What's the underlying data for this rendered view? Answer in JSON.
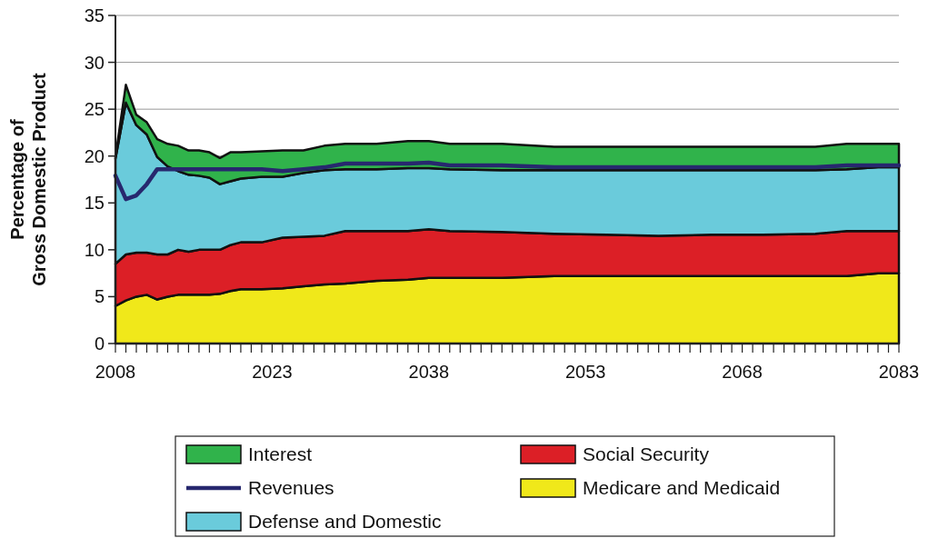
{
  "chart_data": {
    "type": "area",
    "stacked": true,
    "ylabel": "Percentage of\nGross Domestic Product",
    "x": [
      2008,
      2009,
      2010,
      2011,
      2012,
      2013,
      2014,
      2015,
      2016,
      2017,
      2018,
      2019,
      2020,
      2022,
      2024,
      2026,
      2028,
      2030,
      2033,
      2036,
      2038,
      2040,
      2045,
      2050,
      2055,
      2060,
      2065,
      2070,
      2075,
      2078,
      2081,
      2083
    ],
    "series": [
      {
        "name": "Medicare and Medicaid",
        "color": "#f0e81a",
        "values": [
          4.0,
          4.6,
          5.0,
          5.2,
          4.7,
          5.0,
          5.2,
          5.2,
          5.2,
          5.2,
          5.3,
          5.6,
          5.8,
          5.8,
          5.9,
          6.1,
          6.3,
          6.4,
          6.7,
          6.8,
          7.0,
          7.0,
          7.0,
          7.2,
          7.2,
          7.2,
          7.2,
          7.2,
          7.2,
          7.2,
          7.5,
          7.5
        ]
      },
      {
        "name": "Social Security",
        "color": "#dc1f26",
        "values": [
          4.5,
          4.9,
          4.7,
          4.5,
          4.8,
          4.5,
          4.8,
          4.6,
          4.8,
          4.8,
          4.7,
          4.9,
          5.0,
          5.0,
          5.4,
          5.3,
          5.2,
          5.6,
          5.3,
          5.2,
          5.2,
          5.0,
          4.9,
          4.5,
          4.4,
          4.3,
          4.4,
          4.4,
          4.5,
          4.8,
          4.5,
          4.5
        ]
      },
      {
        "name": "Defense and Domestic",
        "color": "#6acbdb",
        "values": [
          11.2,
          16.2,
          13.6,
          12.6,
          10.4,
          9.4,
          8.4,
          8.2,
          7.9,
          7.7,
          7.0,
          6.8,
          6.8,
          7.0,
          6.5,
          6.8,
          7.0,
          6.6,
          6.6,
          6.7,
          6.5,
          6.6,
          6.6,
          6.8,
          6.9,
          7.0,
          6.9,
          6.9,
          6.8,
          6.6,
          6.8,
          6.8
        ]
      },
      {
        "name": "Interest",
        "color": "#30b34b",
        "values": [
          0.2,
          1.9,
          1.1,
          1.3,
          1.9,
          2.4,
          2.7,
          2.6,
          2.7,
          2.7,
          2.8,
          3.1,
          2.8,
          2.7,
          2.8,
          2.4,
          2.6,
          2.7,
          2.7,
          2.9,
          2.9,
          2.7,
          2.8,
          2.5,
          2.5,
          2.5,
          2.5,
          2.5,
          2.5,
          2.7,
          2.5,
          2.5
        ]
      },
      {
        "name": "Revenues",
        "type": "line",
        "color": "#27286e",
        "values": [
          17.9,
          15.4,
          15.8,
          17.0,
          18.6,
          18.6,
          18.6,
          18.6,
          18.6,
          18.6,
          18.6,
          18.6,
          18.6,
          18.6,
          18.4,
          18.6,
          18.8,
          19.2,
          19.2,
          19.2,
          19.3,
          19.0,
          19.0,
          18.8,
          18.8,
          18.8,
          18.8,
          18.8,
          18.8,
          19.0,
          19.0,
          19.0
        ]
      }
    ],
    "xlim": [
      2008,
      2083
    ],
    "xticks": [
      2008,
      {
        "value": 2009,
        "label": null
      },
      {
        "value": 2010,
        "label": null
      },
      {
        "value": 2011,
        "label": null
      },
      {
        "value": 2012,
        "label": null
      },
      {
        "value": 2013,
        "label": null
      },
      {
        "value": 2014,
        "label": null
      },
      {
        "value": 2015,
        "label": null
      },
      {
        "value": 2016,
        "label": null
      },
      {
        "value": 2017,
        "label": null
      },
      {
        "value": 2018,
        "label": null
      },
      {
        "value": 2019,
        "label": null
      },
      {
        "value": 2020,
        "label": null
      },
      {
        "value": 2021,
        "label": null
      },
      {
        "value": 2022,
        "label": null
      },
      2023,
      {
        "value": 2024,
        "label": null
      },
      {
        "value": 2025,
        "label": null
      },
      {
        "value": 2026,
        "label": null
      },
      {
        "value": 2027,
        "label": null
      },
      {
        "value": 2028,
        "label": null
      },
      {
        "value": 2029,
        "label": null
      },
      {
        "value": 2030,
        "label": null
      },
      {
        "value": 2031,
        "label": null
      },
      {
        "value": 2032,
        "label": null
      },
      {
        "value": 2033,
        "label": null
      },
      {
        "value": 2034,
        "label": null
      },
      {
        "value": 2035,
        "label": null
      },
      {
        "value": 2036,
        "label": null
      },
      {
        "value": 2037,
        "label": null
      },
      2038,
      {
        "value": 2039,
        "label": null
      },
      {
        "value": 2040,
        "label": null
      },
      {
        "value": 2041,
        "label": null
      },
      {
        "value": 2042,
        "label": null
      },
      {
        "value": 2043,
        "label": null
      },
      {
        "value": 2044,
        "label": null
      },
      {
        "value": 2045,
        "label": null
      },
      {
        "value": 2046,
        "label": null
      },
      {
        "value": 2047,
        "label": null
      },
      {
        "value": 2048,
        "label": null
      },
      {
        "value": 2049,
        "label": null
      },
      {
        "value": 2050,
        "label": null
      },
      {
        "value": 2051,
        "label": null
      },
      {
        "value": 2052,
        "label": null
      },
      2053,
      {
        "value": 2054,
        "label": null
      },
      {
        "value": 2055,
        "label": null
      },
      {
        "value": 2056,
        "label": null
      },
      {
        "value": 2057,
        "label": null
      },
      {
        "value": 2058,
        "label": null
      },
      {
        "value": 2059,
        "label": null
      },
      {
        "value": 2060,
        "label": null
      },
      {
        "value": 2061,
        "label": null
      },
      {
        "value": 2062,
        "label": null
      },
      {
        "value": 2063,
        "label": null
      },
      {
        "value": 2064,
        "label": null
      },
      {
        "value": 2065,
        "label": null
      },
      {
        "value": 2066,
        "label": null
      },
      {
        "value": 2067,
        "label": null
      },
      2068,
      {
        "value": 2069,
        "label": null
      },
      {
        "value": 2070,
        "label": null
      },
      {
        "value": 2071,
        "label": null
      },
      {
        "value": 2072,
        "label": null
      },
      {
        "value": 2073,
        "label": null
      },
      {
        "value": 2074,
        "label": null
      },
      {
        "value": 2075,
        "label": null
      },
      {
        "value": 2076,
        "label": null
      },
      {
        "value": 2077,
        "label": null
      },
      {
        "value": 2078,
        "label": null
      },
      {
        "value": 2079,
        "label": null
      },
      {
        "value": 2080,
        "label": null
      },
      {
        "value": 2081,
        "label": null
      },
      {
        "value": 2082,
        "label": null
      },
      2083
    ],
    "ylim": [
      0,
      35
    ],
    "yticks": [
      0,
      5,
      10,
      15,
      20,
      25,
      30,
      35
    ],
    "grid": "y",
    "legend": "bottom"
  }
}
